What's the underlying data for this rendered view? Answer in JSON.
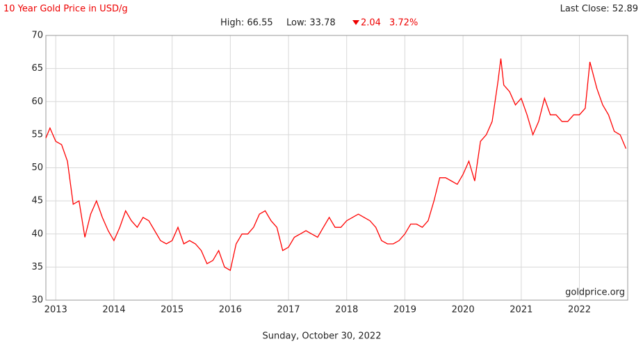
{
  "chart_data": {
    "type": "line",
    "title": "10 Year Gold Price in USD/g",
    "last_close": "Last Close: 52.89",
    "stats": {
      "high": "High: 66.55",
      "low": "Low: 33.78",
      "change": "2.04",
      "change_pct": "3.72%"
    },
    "date": "Sunday, October 30, 2022",
    "source": "goldprice.org",
    "color": "#ff0000",
    "x": [
      2012.83,
      2012.9,
      2013.0,
      2013.1,
      2013.2,
      2013.3,
      2013.4,
      2013.5,
      2013.6,
      2013.7,
      2013.8,
      2013.9,
      2014.0,
      2014.1,
      2014.2,
      2014.3,
      2014.4,
      2014.5,
      2014.6,
      2014.7,
      2014.8,
      2014.9,
      2015.0,
      2015.1,
      2015.2,
      2015.3,
      2015.4,
      2015.5,
      2015.6,
      2015.7,
      2015.8,
      2015.9,
      2016.0,
      2016.1,
      2016.2,
      2016.3,
      2016.4,
      2016.5,
      2016.6,
      2016.7,
      2016.8,
      2016.9,
      2017.0,
      2017.1,
      2017.2,
      2017.3,
      2017.4,
      2017.5,
      2017.6,
      2017.7,
      2017.8,
      2017.9,
      2018.0,
      2018.1,
      2018.2,
      2018.3,
      2018.4,
      2018.5,
      2018.6,
      2018.7,
      2018.8,
      2018.9,
      2019.0,
      2019.1,
      2019.2,
      2019.3,
      2019.4,
      2019.5,
      2019.6,
      2019.7,
      2019.8,
      2019.9,
      2020.0,
      2020.1,
      2020.2,
      2020.3,
      2020.4,
      2020.5,
      2020.6,
      2020.65,
      2020.7,
      2020.8,
      2020.9,
      2021.0,
      2021.1,
      2021.2,
      2021.3,
      2021.4,
      2021.5,
      2021.6,
      2021.7,
      2021.8,
      2021.9,
      2022.0,
      2022.1,
      2022.18,
      2022.3,
      2022.4,
      2022.5,
      2022.6,
      2022.7,
      2022.8
    ],
    "values": [
      54.5,
      56,
      54,
      53.5,
      51,
      44.5,
      45,
      39.5,
      43,
      45,
      42.5,
      40.5,
      39,
      41,
      43.5,
      42,
      41,
      42.5,
      42,
      40.5,
      39,
      38.5,
      39,
      41,
      38.5,
      39,
      38.5,
      37.5,
      35.5,
      36,
      37.5,
      35,
      34.5,
      38.5,
      40,
      40,
      41,
      43,
      43.5,
      42,
      41,
      37.5,
      38,
      39.5,
      40,
      40.5,
      40,
      39.5,
      41,
      42.5,
      41,
      41,
      42,
      42.5,
      43,
      42.5,
      42,
      41,
      39,
      38.5,
      38.5,
      39,
      40,
      41.5,
      41.5,
      41,
      42,
      45,
      48.5,
      48.5,
      48,
      47.5,
      49,
      51,
      48,
      54,
      55,
      57,
      63,
      66.5,
      62.5,
      61.5,
      59.5,
      60.5,
      58,
      55,
      57,
      60.5,
      58,
      58,
      57,
      57,
      58,
      58,
      59,
      66,
      62,
      59.5,
      58,
      55.5,
      55,
      52.9
    ],
    "xlim": [
      2012.83,
      2022.83
    ],
    "ylim": [
      30,
      70
    ],
    "xticks": [
      2013,
      2014,
      2015,
      2016,
      2017,
      2018,
      2019,
      2020,
      2021,
      2022
    ],
    "yticks": [
      30,
      35,
      40,
      45,
      50,
      55,
      60,
      65,
      70
    ],
    "grid": true
  }
}
